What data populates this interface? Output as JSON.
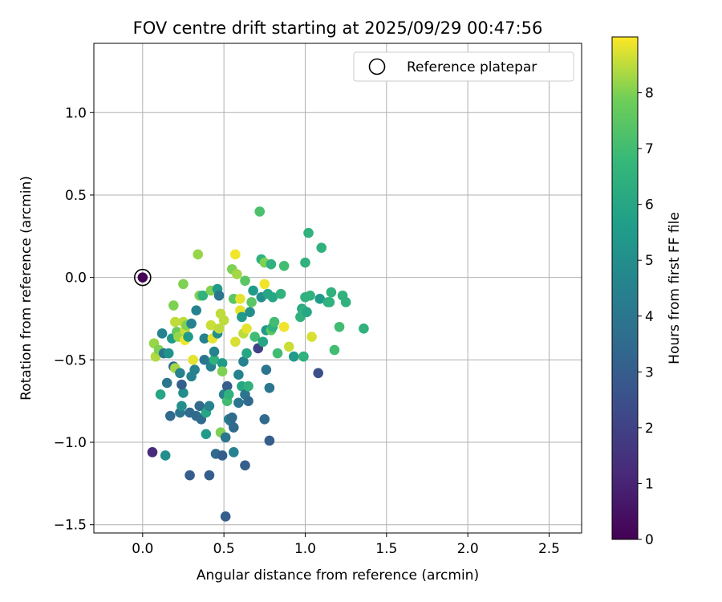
{
  "chart_data": {
    "type": "scatter",
    "title": "FOV centre drift starting at 2025/09/29 00:47:56",
    "xlabel": "Angular distance from reference (arcmin)",
    "ylabel": "Rotation from reference (arcmin)",
    "xlim": [
      -0.3,
      2.7
    ],
    "ylim": [
      -1.55,
      1.42
    ],
    "xticks": [
      0.0,
      0.5,
      1.0,
      1.5,
      2.0,
      2.5
    ],
    "xtick_labels": [
      "0.0",
      "0.5",
      "1.0",
      "1.5",
      "2.0",
      "2.5"
    ],
    "yticks": [
      -1.5,
      -1.0,
      -0.5,
      0.0,
      0.5,
      1.0
    ],
    "ytick_labels": [
      "−1.5",
      "−1.0",
      "−0.5",
      "0.0",
      "0.5",
      "1.0"
    ],
    "grid": true,
    "legend": {
      "placement": "top-right",
      "entries": [
        "Reference platepar"
      ]
    },
    "reference_point": {
      "x": 0.0,
      "y": 0.0
    },
    "colorbar": {
      "label": "Hours from first FF file",
      "range": [
        0,
        9
      ],
      "ticks": [
        0,
        1,
        2,
        3,
        4,
        5,
        6,
        7,
        8
      ],
      "tick_labels": [
        "0",
        "1",
        "2",
        "3",
        "4",
        "5",
        "6",
        "7",
        "8"
      ],
      "colormap": "viridis"
    },
    "points": [
      [
        0.0,
        0.0,
        0.05
      ],
      [
        0.06,
        -1.06,
        1.2
      ],
      [
        0.08,
        -0.48,
        8.4
      ],
      [
        0.07,
        -0.4,
        8.2
      ],
      [
        0.1,
        -0.44,
        8.0
      ],
      [
        0.11,
        -0.71,
        6.0
      ],
      [
        0.12,
        -0.34,
        4.5
      ],
      [
        0.13,
        -0.46,
        4.0
      ],
      [
        0.14,
        -1.08,
        5.0
      ],
      [
        0.15,
        -0.64,
        4.0
      ],
      [
        0.16,
        -0.46,
        5.2
      ],
      [
        0.17,
        -0.84,
        3.5
      ],
      [
        0.18,
        -0.37,
        5.5
      ],
      [
        0.19,
        -0.54,
        3.5
      ],
      [
        0.2,
        -0.55,
        8.3
      ],
      [
        0.19,
        -0.17,
        8.0
      ],
      [
        0.2,
        -0.27,
        8.5
      ],
      [
        0.21,
        -0.33,
        7.7
      ],
      [
        0.22,
        -0.36,
        8.2
      ],
      [
        0.23,
        -0.82,
        4.0
      ],
      [
        0.24,
        -0.78,
        5.0
      ],
      [
        0.25,
        -0.7,
        5.0
      ],
      [
        0.24,
        -0.65,
        3.0
      ],
      [
        0.23,
        -0.58,
        4.5
      ],
      [
        0.25,
        -0.27,
        8.5
      ],
      [
        0.26,
        -0.32,
        8.6
      ],
      [
        0.27,
        -0.29,
        8.0
      ],
      [
        0.26,
        -0.38,
        8.9
      ],
      [
        0.28,
        -0.36,
        5.5
      ],
      [
        0.25,
        -0.04,
        8.0
      ],
      [
        0.29,
        -0.82,
        3.5
      ],
      [
        0.29,
        -1.2,
        3.0
      ],
      [
        0.3,
        -0.6,
        4.5
      ],
      [
        0.3,
        -0.28,
        4.5
      ],
      [
        0.31,
        -0.5,
        8.8
      ],
      [
        0.32,
        -0.56,
        4.5
      ],
      [
        0.33,
        -0.84,
        3.5
      ],
      [
        0.33,
        -0.2,
        4.5
      ],
      [
        0.34,
        0.14,
        8.2
      ],
      [
        0.35,
        -0.11,
        8.0
      ],
      [
        0.35,
        -0.78,
        3.5
      ],
      [
        0.36,
        -0.86,
        3.5
      ],
      [
        0.37,
        -0.11,
        6.5
      ],
      [
        0.38,
        -0.37,
        4.5
      ],
      [
        0.38,
        -0.5,
        4.0
      ],
      [
        0.39,
        -0.82,
        6.0
      ],
      [
        0.39,
        -0.95,
        5.5
      ],
      [
        0.41,
        -0.78,
        4.5
      ],
      [
        0.41,
        -1.2,
        3.0
      ],
      [
        0.42,
        -0.54,
        4.5
      ],
      [
        0.42,
        -0.08,
        8.0
      ],
      [
        0.42,
        -0.29,
        8.6
      ],
      [
        0.43,
        -0.37,
        8.8
      ],
      [
        0.44,
        -0.5,
        6.5
      ],
      [
        0.44,
        -0.45,
        4.5
      ],
      [
        0.45,
        -1.07,
        3.5
      ],
      [
        0.46,
        -0.34,
        5.0
      ],
      [
        0.46,
        -0.07,
        5.5
      ],
      [
        0.47,
        -0.11,
        4.0
      ],
      [
        0.47,
        -0.31,
        8.5
      ],
      [
        0.48,
        -0.22,
        8.5
      ],
      [
        0.48,
        -0.94,
        8.0
      ],
      [
        0.49,
        -0.52,
        5.5
      ],
      [
        0.49,
        -1.08,
        3.0
      ],
      [
        0.49,
        -0.57,
        8.0
      ],
      [
        0.5,
        -0.71,
        4.5
      ],
      [
        0.5,
        -0.26,
        8.5
      ],
      [
        0.51,
        -0.97,
        4.0
      ],
      [
        0.51,
        -1.45,
        3.0
      ],
      [
        0.52,
        -0.66,
        3.0
      ],
      [
        0.52,
        -0.75,
        7.0
      ],
      [
        0.53,
        -0.71,
        6.5
      ],
      [
        0.53,
        -0.86,
        4.5
      ],
      [
        0.54,
        -0.87,
        4.0
      ],
      [
        0.55,
        -0.85,
        3.5
      ],
      [
        0.55,
        0.05,
        8.0
      ],
      [
        0.56,
        -0.13,
        7.5
      ],
      [
        0.56,
        -0.91,
        3.5
      ],
      [
        0.56,
        -1.06,
        4.5
      ],
      [
        0.57,
        0.14,
        8.9
      ],
      [
        0.57,
        -0.39,
        8.7
      ],
      [
        0.58,
        0.02,
        8.3
      ],
      [
        0.59,
        -0.76,
        4.0
      ],
      [
        0.59,
        -0.59,
        4.5
      ],
      [
        0.6,
        -0.2,
        8.8
      ],
      [
        0.6,
        -0.13,
        8.8
      ],
      [
        0.61,
        -0.24,
        5.5
      ],
      [
        0.61,
        -0.66,
        6.0
      ],
      [
        0.62,
        -0.34,
        8.5
      ],
      [
        0.62,
        -0.51,
        4.5
      ],
      [
        0.63,
        -0.02,
        7.5
      ],
      [
        0.63,
        -0.71,
        4.0
      ],
      [
        0.63,
        -1.14,
        3.0
      ],
      [
        0.64,
        -0.31,
        8.8
      ],
      [
        0.64,
        -0.46,
        6.0
      ],
      [
        0.65,
        -0.75,
        3.5
      ],
      [
        0.65,
        -0.66,
        6.5
      ],
      [
        0.66,
        -0.21,
        5.0
      ],
      [
        0.67,
        -0.15,
        7.5
      ],
      [
        0.68,
        -0.08,
        5.5
      ],
      [
        0.69,
        -0.36,
        7.0
      ],
      [
        0.71,
        -0.43,
        2.0
      ],
      [
        0.72,
        0.4,
        7.2
      ],
      [
        0.73,
        0.11,
        6.5
      ],
      [
        0.73,
        -0.12,
        5.0
      ],
      [
        0.74,
        -0.39,
        6.0
      ],
      [
        0.75,
        0.09,
        8.0
      ],
      [
        0.75,
        -0.04,
        8.9
      ],
      [
        0.75,
        -0.86,
        3.5
      ],
      [
        0.76,
        -0.56,
        4.0
      ],
      [
        0.76,
        -0.32,
        5.5
      ],
      [
        0.77,
        -0.1,
        6.0
      ],
      [
        0.78,
        -0.99,
        3.0
      ],
      [
        0.78,
        -0.67,
        4.0
      ],
      [
        0.79,
        0.08,
        6.5
      ],
      [
        0.79,
        -0.32,
        7.5
      ],
      [
        0.8,
        -0.3,
        6.5
      ],
      [
        0.8,
        -0.12,
        6.0
      ],
      [
        0.81,
        -0.27,
        7.0
      ],
      [
        0.83,
        -0.46,
        7.0
      ],
      [
        0.85,
        -0.1,
        6.5
      ],
      [
        0.87,
        0.07,
        7.0
      ],
      [
        0.87,
        -0.3,
        8.9
      ],
      [
        0.9,
        -0.42,
        8.6
      ],
      [
        0.93,
        -0.48,
        5.5
      ],
      [
        0.97,
        -0.24,
        6.5
      ],
      [
        0.98,
        -0.19,
        6.0
      ],
      [
        0.99,
        -0.48,
        6.5
      ],
      [
        0.99,
        -0.2,
        6.5
      ],
      [
        1.0,
        0.09,
        6.5
      ],
      [
        1.0,
        -0.12,
        6.5
      ],
      [
        1.01,
        -0.21,
        6.0
      ],
      [
        1.02,
        0.27,
        6.5
      ],
      [
        1.03,
        -0.11,
        6.5
      ],
      [
        1.04,
        -0.36,
        8.7
      ],
      [
        1.08,
        -0.58,
        2.5
      ],
      [
        1.09,
        -0.13,
        5.5
      ],
      [
        1.1,
        0.18,
        6.5
      ],
      [
        1.14,
        -0.15,
        6.5
      ],
      [
        1.15,
        -0.15,
        6.5
      ],
      [
        1.16,
        -0.09,
        6.5
      ],
      [
        1.18,
        -0.44,
        7.0
      ],
      [
        1.21,
        -0.3,
        7.0
      ],
      [
        1.23,
        -0.11,
        6.5
      ],
      [
        1.25,
        -0.15,
        6.5
      ],
      [
        1.36,
        -0.31,
        6.5
      ]
    ]
  }
}
